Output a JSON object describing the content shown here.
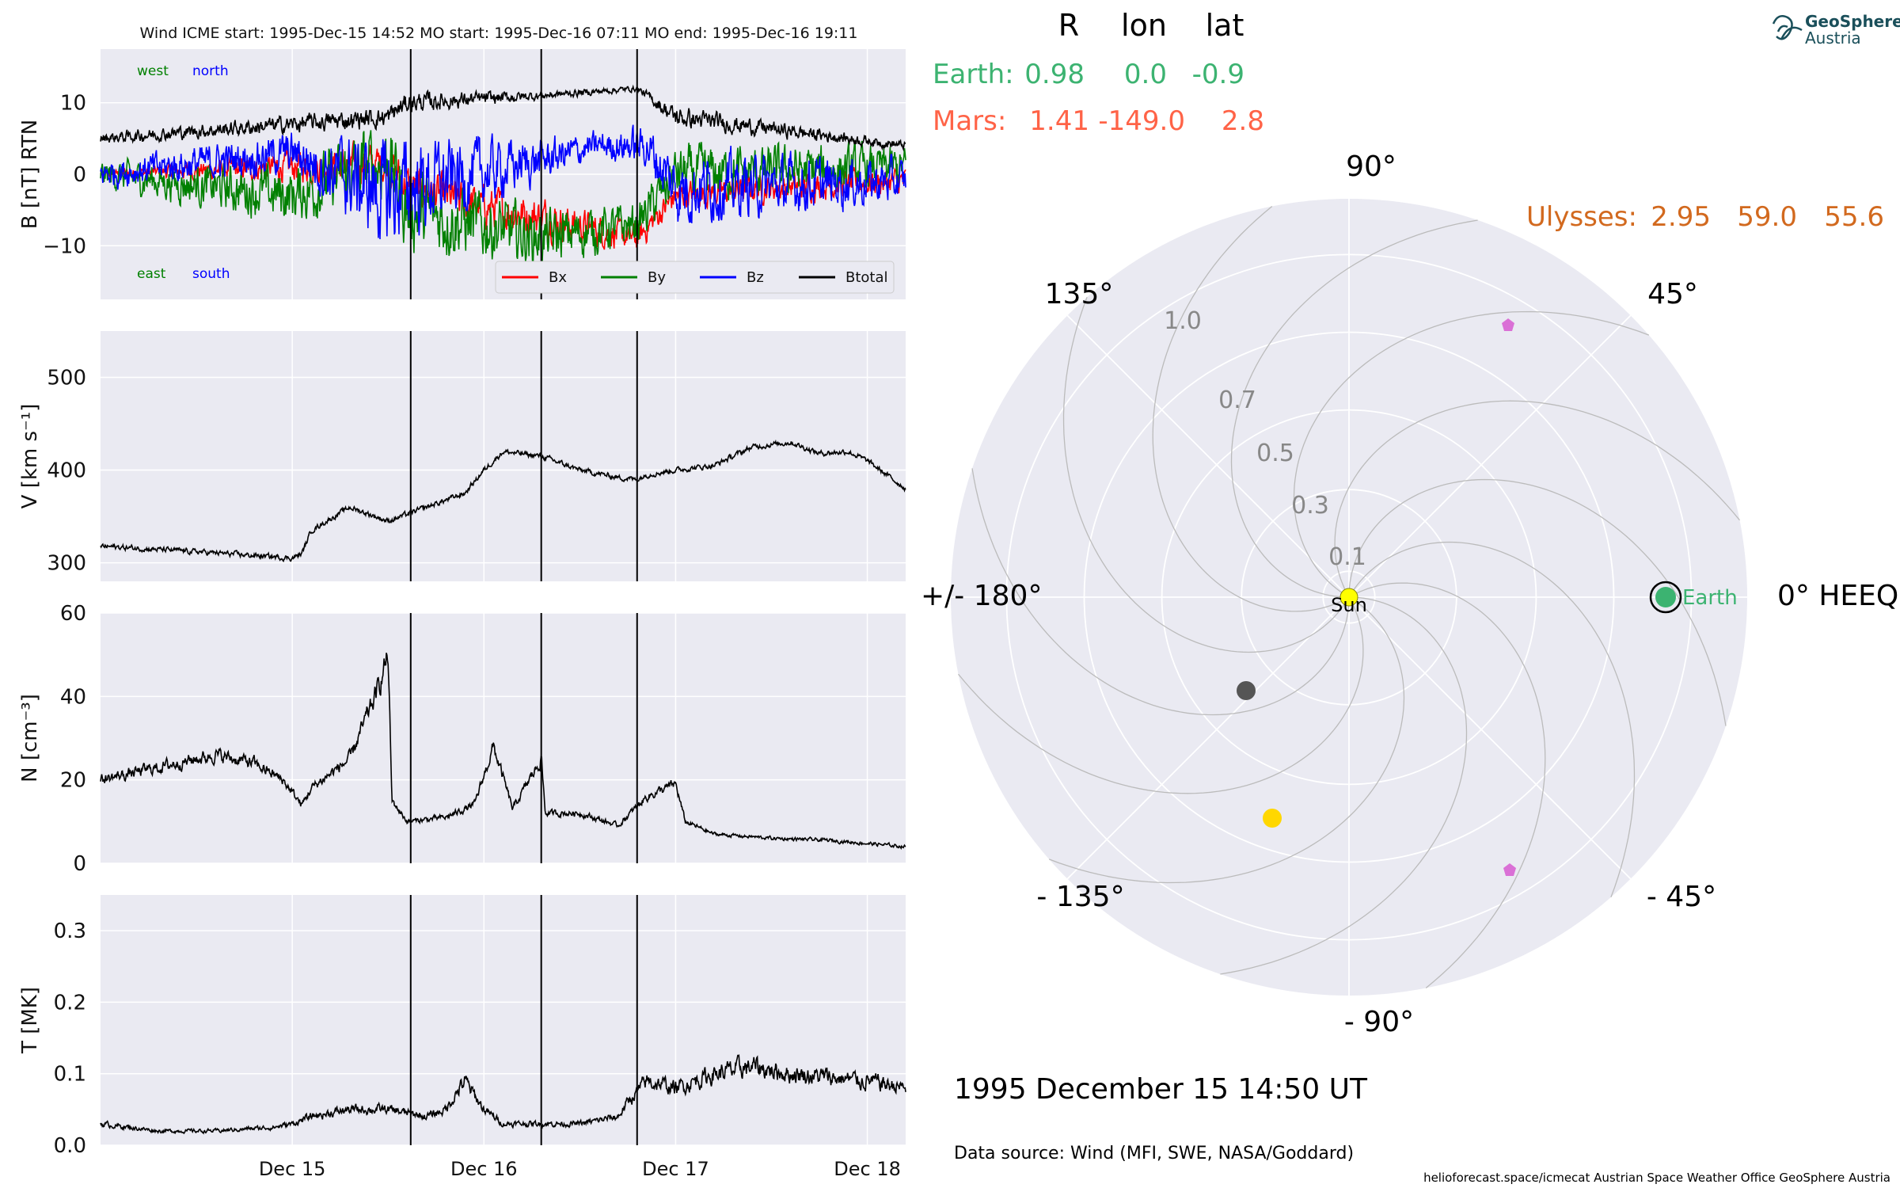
{
  "header": {
    "title": "Wind    ICME start: 1995-Dec-15 14:52   MO start: 1995-Dec-16 07:11   MO end: 1995-Dec-16 19:11"
  },
  "colors": {
    "panel_bg": "#eaeaf2",
    "grid": "#ffffff",
    "bx": "#ff0000",
    "by": "#008000",
    "bz": "#0000ff",
    "btotal": "#000000",
    "earth": "#3cb371",
    "mars": "#ff6347",
    "ulysses": "#d2691e",
    "polar_circle": "#bbbbbb",
    "sun": "#ffff00",
    "yellow_dot": "#ffd700",
    "gray_dot": "#555555",
    "pentagon": "#da70d6"
  },
  "chart_data": [
    {
      "type": "line",
      "panel": "magnetic field",
      "ylabel": "B [nT] RTN",
      "ylim": [
        -17.5,
        17.5
      ],
      "yticks": [
        10,
        0,
        -10
      ],
      "ytick_labels": [
        "10",
        "0",
        "−10"
      ],
      "xlim_days": [
        0,
        4.2
      ],
      "x_start": "1995-Dec-14 00:00",
      "annotations": {
        "west": "west",
        "north": "north",
        "east": "east",
        "south": "south"
      },
      "series": [
        {
          "name": "Bx",
          "color": "#ff0000",
          "segments": [
            [
              0,
              0,
              0.5
            ],
            [
              1.5,
              1.5,
              3
            ],
            [
              1.6,
              -1.5,
              3
            ],
            [
              1.9,
              -4,
              3
            ],
            [
              2.3,
              -6,
              3
            ],
            [
              2.8,
              -9,
              2
            ],
            [
              3.0,
              -3,
              2
            ],
            [
              3.4,
              -2,
              2
            ],
            [
              4.2,
              -1,
              2
            ]
          ]
        },
        {
          "name": "By",
          "color": "#008000",
          "segments": [
            [
              0,
              0,
              2
            ],
            [
              1.0,
              -3,
              4
            ],
            [
              1.5,
              2,
              6
            ],
            [
              1.6,
              -5,
              6
            ],
            [
              2.3,
              -9,
              4
            ],
            [
              2.8,
              -7,
              3
            ],
            [
              3.0,
              0,
              4
            ],
            [
              4.2,
              1,
              3
            ]
          ]
        },
        {
          "name": "Bz",
          "color": "#0000ff",
          "segments": [
            [
              0,
              0,
              2
            ],
            [
              1.0,
              3,
              3
            ],
            [
              1.5,
              -3,
              8
            ],
            [
              1.6,
              -2,
              7
            ],
            [
              2.3,
              2,
              3
            ],
            [
              2.6,
              4,
              2
            ],
            [
              2.85,
              4,
              3
            ],
            [
              3.0,
              -2,
              5
            ],
            [
              4.2,
              -1,
              3
            ]
          ]
        },
        {
          "name": "Btotal",
          "color": "#000000",
          "segments": [
            [
              0,
              5,
              0.8
            ],
            [
              1.5,
              8,
              1.5
            ],
            [
              1.6,
              10,
              1.5
            ],
            [
              2.3,
              11,
              0.6
            ],
            [
              2.8,
              12,
              0.4
            ],
            [
              3.0,
              8,
              1.5
            ],
            [
              4.2,
              4,
              0.6
            ]
          ]
        }
      ]
    },
    {
      "type": "line",
      "panel": "velocity",
      "ylabel": "V [km s⁻¹]",
      "ylim": [
        280,
        550
      ],
      "yticks": [
        500,
        400,
        300
      ],
      "ytick_labels": [
        "500",
        "400",
        "300"
      ],
      "points": [
        [
          0,
          318
        ],
        [
          0.5,
          312
        ],
        [
          1.0,
          305
        ],
        [
          1.05,
          310
        ],
        [
          1.1,
          335
        ],
        [
          1.3,
          360
        ],
        [
          1.5,
          345
        ],
        [
          1.7,
          360
        ],
        [
          1.9,
          375
        ],
        [
          2.0,
          400
        ],
        [
          2.1,
          420
        ],
        [
          2.3,
          415
        ],
        [
          2.5,
          400
        ],
        [
          2.7,
          392
        ],
        [
          2.8,
          390
        ],
        [
          2.85,
          395
        ],
        [
          3.0,
          400
        ],
        [
          3.2,
          405
        ],
        [
          3.4,
          425
        ],
        [
          3.6,
          430
        ],
        [
          3.75,
          418
        ],
        [
          3.9,
          420
        ],
        [
          4.0,
          410
        ],
        [
          4.2,
          380
        ]
      ]
    },
    {
      "type": "line",
      "panel": "density",
      "ylabel": "N [cm⁻³]",
      "ylim": [
        0,
        60
      ],
      "yticks": [
        60,
        40,
        20,
        0
      ],
      "ytick_labels": [
        "60",
        "40",
        "20",
        "0"
      ],
      "points": [
        [
          0,
          20
        ],
        [
          0.2,
          22
        ],
        [
          0.4,
          24
        ],
        [
          0.6,
          26
        ],
        [
          0.8,
          24
        ],
        [
          0.95,
          20
        ],
        [
          1.05,
          14
        ],
        [
          1.1,
          18
        ],
        [
          1.3,
          25
        ],
        [
          1.45,
          42
        ],
        [
          1.5,
          50
        ],
        [
          1.52,
          15
        ],
        [
          1.6,
          10
        ],
        [
          1.8,
          11
        ],
        [
          1.95,
          14
        ],
        [
          2.05,
          28
        ],
        [
          2.15,
          13
        ],
        [
          2.3,
          25
        ],
        [
          2.32,
          12
        ],
        [
          2.5,
          12
        ],
        [
          2.7,
          9
        ],
        [
          2.85,
          16
        ],
        [
          3.0,
          19
        ],
        [
          3.05,
          10
        ],
        [
          3.2,
          7
        ],
        [
          3.5,
          6
        ],
        [
          3.8,
          5.5
        ],
        [
          4.2,
          4
        ]
      ]
    },
    {
      "type": "line",
      "panel": "temperature",
      "ylabel": "T [MK]",
      "ylim": [
        0,
        0.35
      ],
      "yticks": [
        0.3,
        0.2,
        0.1,
        0.0
      ],
      "ytick_labels": [
        "0.3",
        "0.2",
        "0.1",
        "0.0"
      ],
      "xticks": [
        1,
        2,
        3,
        4
      ],
      "xtick_labels": [
        "Dec 15",
        "Dec 16",
        "Dec 17",
        "Dec 18"
      ],
      "points": [
        [
          0,
          0.03
        ],
        [
          0.3,
          0.02
        ],
        [
          0.6,
          0.02
        ],
        [
          0.9,
          0.025
        ],
        [
          1.0,
          0.03
        ],
        [
          1.1,
          0.04
        ],
        [
          1.3,
          0.05
        ],
        [
          1.5,
          0.05
        ],
        [
          1.6,
          0.045
        ],
        [
          1.7,
          0.04
        ],
        [
          1.8,
          0.05
        ],
        [
          1.9,
          0.09
        ],
        [
          2.0,
          0.05
        ],
        [
          2.1,
          0.03
        ],
        [
          2.3,
          0.03
        ],
        [
          2.5,
          0.03
        ],
        [
          2.7,
          0.04
        ],
        [
          2.75,
          0.06
        ],
        [
          2.85,
          0.09
        ],
        [
          3.0,
          0.08
        ],
        [
          3.2,
          0.1
        ],
        [
          3.4,
          0.11
        ],
        [
          3.6,
          0.1
        ],
        [
          3.8,
          0.095
        ],
        [
          4.0,
          0.09
        ],
        [
          4.2,
          0.08
        ]
      ]
    }
  ],
  "event_markers_days": [
    1.618,
    2.299,
    2.799
  ],
  "legend": [
    "Bx",
    "By",
    "Bz",
    "Btotal"
  ],
  "positions": {
    "header_cols": [
      "R",
      "lon",
      "lat"
    ],
    "earth": {
      "label": "Earth:",
      "R": "0.98",
      "lon": "0.0",
      "lat": "-0.9"
    },
    "mars": {
      "label": "Mars:",
      "R": "1.41",
      "lon": "-149.0",
      "lat": "2.8"
    },
    "ulysses": {
      "label": "Ulysses:",
      "R": "2.95",
      "lon": "59.0",
      "lat": "55.6"
    }
  },
  "polar": {
    "angle_labels": {
      "a90": "90°",
      "a45": "45°",
      "a0": "0° HEEQ",
      "am45": "- 45°",
      "am90": "- 90°",
      "am135": "- 135°",
      "a180": "+/- 180°",
      "a135": "135°"
    },
    "radial_labels": [
      "0.1",
      "0.3",
      "0.5",
      "0.7",
      "1.0"
    ],
    "sun_label": "Sun",
    "earth_label": "Earth"
  },
  "date_label": "1995 December 15  14:50 UT",
  "data_source": "Data source: Wind (MFI, SWE, NASA/Goddard)",
  "footer": "helioforecast.space/icmecat   Austrian Space Weather Office   GeoSphere Austria",
  "logo": {
    "line1": "GeoSphere",
    "line2": "Austria"
  }
}
